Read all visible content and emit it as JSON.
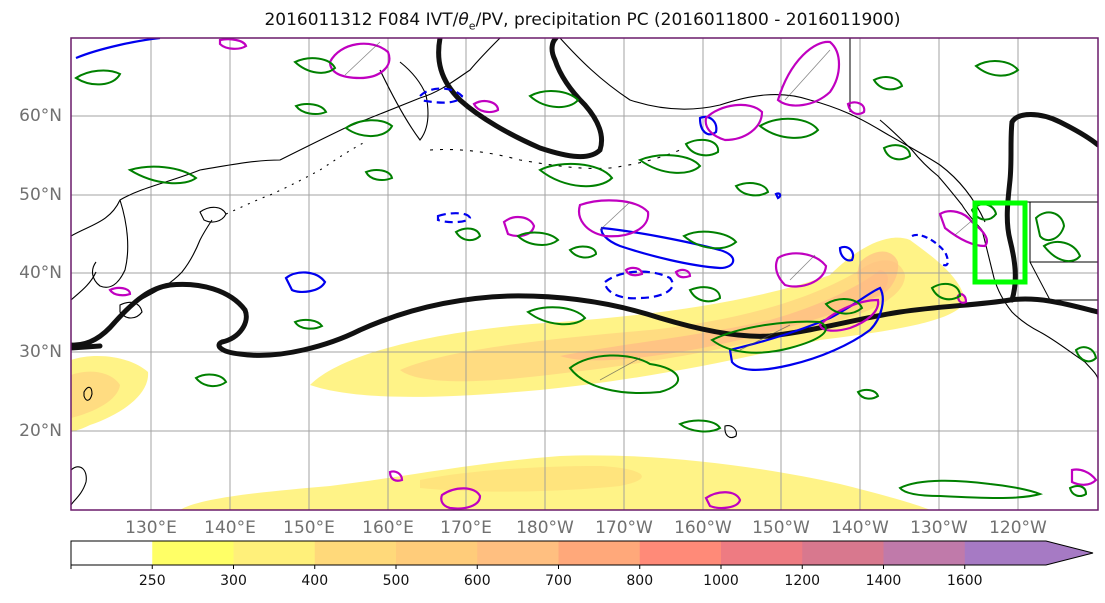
{
  "title": {
    "prefix": "2016011312 F084 IVT/",
    "theta": "θ",
    "theta_sub": "e",
    "suffix": "/PV, precipitation PC (2016011800 - 2016011900)"
  },
  "map": {
    "lat_labels": [
      "60°N",
      "50°N",
      "40°N",
      "30°N",
      "20°N"
    ],
    "lon_labels": [
      "130°E",
      "140°E",
      "150°E",
      "160°E",
      "170°E",
      "180°W",
      "170°W",
      "160°W",
      "150°W",
      "140°W",
      "130°W",
      "120°W"
    ],
    "target_box_color": "#00ff00"
  },
  "colorbar": {
    "levels": [
      "250",
      "300",
      "400",
      "500",
      "600",
      "700",
      "800",
      "1000",
      "1200",
      "1400",
      "1600"
    ],
    "colors": [
      "#ffff66",
      "#fff07a",
      "#ffd97a",
      "#ffcc7a",
      "#ffbf80",
      "#ffa87a",
      "#ff8a78",
      "#ee7b82",
      "#d8788e",
      "#c07aaa",
      "#a67ac4"
    ]
  },
  "legend_colors": {
    "ivt_fill": "#ffeb6b",
    "theta_e_contour": "#000000",
    "pv_positive": "#c000c0",
    "pv_blue": "#0000ee",
    "precip_pc": "#008000"
  }
}
